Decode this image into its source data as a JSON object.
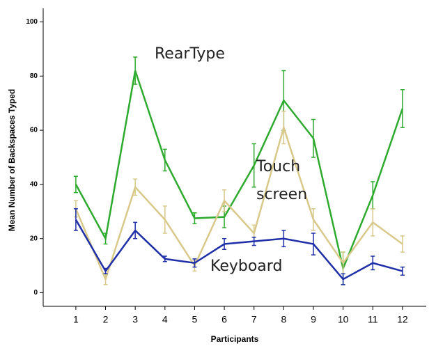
{
  "chart_data": {
    "type": "line",
    "x_label": "Participants",
    "y_label": "Mean Number of Backspaces Typed",
    "x": [
      1,
      2,
      3,
      4,
      5,
      6,
      7,
      8,
      9,
      10,
      11,
      12
    ],
    "series": [
      {
        "name": "RearType",
        "color": "#2eab2e",
        "values": [
          40,
          20,
          82,
          49,
          27.5,
          28,
          47,
          71,
          57,
          9,
          36,
          68
        ],
        "errors": [
          3,
          2,
          5,
          4,
          2,
          4,
          8,
          11,
          7,
          6,
          5,
          7
        ]
      },
      {
        "name": "Touch screen",
        "color": "#d8c98a",
        "values": [
          31,
          5,
          39,
          27,
          10,
          34,
          22,
          61,
          27,
          11,
          26,
          18
        ],
        "errors": [
          3,
          2,
          3,
          5,
          2,
          4,
          3,
          6,
          4,
          4,
          5,
          3
        ]
      },
      {
        "name": "Keyboard",
        "color": "#1f2fa8",
        "values": [
          27,
          8,
          23,
          12.5,
          11,
          18,
          19,
          20,
          18,
          5,
          11,
          8
        ],
        "errors": [
          4,
          1,
          3,
          1,
          1.5,
          2,
          1.5,
          3,
          4,
          2,
          2.5,
          1.5
        ]
      }
    ],
    "xlim": [
      -0.1,
      12.8
    ],
    "ylim": [
      -5,
      105
    ],
    "xticks": [
      1,
      2,
      3,
      4,
      5,
      6,
      7,
      8,
      9,
      10,
      11,
      12
    ],
    "yticks": [
      0,
      20,
      40,
      60,
      80,
      100
    ]
  }
}
